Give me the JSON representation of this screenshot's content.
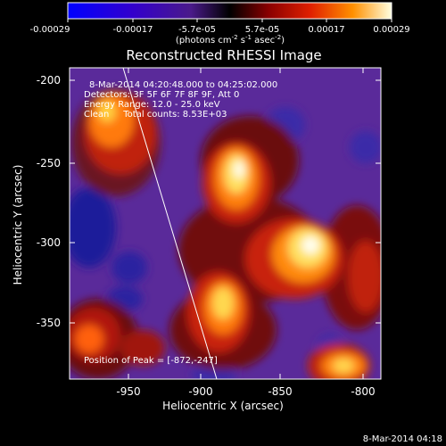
{
  "title": "Reconstructed RHESSI Image",
  "colorbar": {
    "ticks": [
      "-0.00029",
      "-0.00017",
      "-5.7e-05",
      "5.7e-05",
      "0.00017",
      "0.00029"
    ],
    "unit_parts": [
      "(photons cm",
      "-2",
      " s",
      "-1",
      " asec",
      "-2",
      ")"
    ]
  },
  "info": {
    "time_range": "8-Mar-2014 04:20:48.000 to 04:25:02.000",
    "detectors": "Detectors: 3F 5F 6F 7F 8F 9F, Att 0",
    "energy": "Energy Range: 12.0 - 25.0 keV",
    "method": "Clean     Total counts: 8.53E+03"
  },
  "peak_label": "Position of Peak = [-872,-247]",
  "axes": {
    "xlabel": "Heliocentric X (arcsec)",
    "ylabel": "Heliocentric Y (arcsec)",
    "x_ticks": [
      "-950",
      "-900",
      "-850",
      "-800"
    ],
    "y_ticks": [
      "-200",
      "-250",
      "-300",
      "-350"
    ],
    "xlim": [
      -978,
      -788
    ],
    "ylim": [
      -383,
      -193
    ]
  },
  "footer_date": "8-Mar-2014 04:18",
  "colors": {
    "background": "#000000",
    "text": "#ffffff",
    "limb_line": "#ffffff"
  }
}
